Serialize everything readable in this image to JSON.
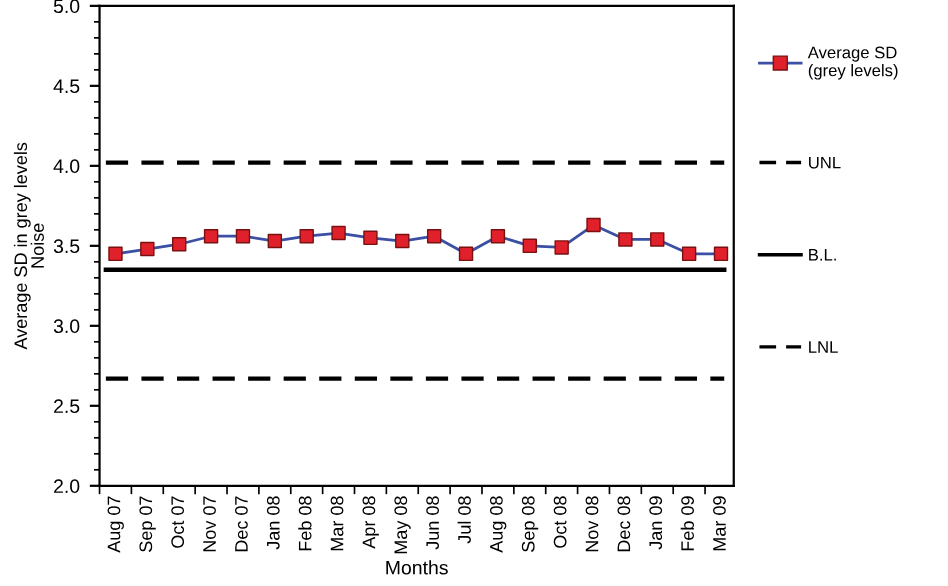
{
  "chart_data": {
    "type": "line",
    "xlabel": "Months",
    "ylabel": "Average SD in grey levels\nNoise",
    "categories": [
      "Aug 07",
      "Sep 07",
      "Oct 07",
      "Nov 07",
      "Dec 07",
      "Jan 08",
      "Feb 08",
      "Mar 08",
      "Apr 08",
      "May 08",
      "Jun 08",
      "Jul 08",
      "Aug 08",
      "Sep 08",
      "Oct 08",
      "Nov 08",
      "Dec 08",
      "Jan 09",
      "Feb 09",
      "Mar 09"
    ],
    "series": [
      {
        "name": "Average SD\n(grey levels)",
        "color": "#3b4fa3",
        "colors": [
          "#e0202a",
          "#e0202a",
          "#e0202a",
          "#e0202a",
          "#e0202a",
          "#e0202a",
          "#e0202a",
          "#e0202a",
          "#e0202a",
          "#e0202a",
          "#e0202a",
          "#e0202a",
          "#e0202a",
          "#e0202a",
          "#e0202a",
          "#e0202a",
          "#e0202a",
          "#e0202a",
          "#e0202a",
          "#e0202a"
        ],
        "marker": "square",
        "line_style": "solid",
        "values": [
          3.45,
          3.48,
          3.51,
          3.56,
          3.56,
          3.53,
          3.56,
          3.58,
          3.55,
          3.53,
          3.56,
          3.45,
          3.56,
          3.5,
          3.49,
          3.63,
          3.54,
          3.54,
          3.45,
          3.45
        ]
      }
    ],
    "ref_lines": [
      {
        "axis": "y",
        "value": 4.02,
        "label": "UNL",
        "color": "#000000",
        "line_style": "dashed"
      },
      {
        "axis": "y",
        "value": 3.35,
        "label": "B.L.",
        "color": "#000000",
        "line_style": "solid"
      },
      {
        "axis": "y",
        "value": 2.67,
        "label": "LNL",
        "color": "#000000",
        "line_style": "dashed"
      }
    ],
    "ylim": [
      2.0,
      5.0
    ],
    "yticks": [
      {
        "value": 2.0,
        "label": "2.0"
      },
      {
        "value": 2.5,
        "label": "2.5"
      },
      {
        "value": 3.0,
        "label": "3.0"
      },
      {
        "value": 3.5,
        "label": "3.5"
      },
      {
        "value": 4.0,
        "label": "4.0"
      },
      {
        "value": 4.5,
        "label": "4.5"
      },
      {
        "value": 5.0,
        "label": "5.0"
      }
    ],
    "grid": false,
    "legend": "right"
  }
}
